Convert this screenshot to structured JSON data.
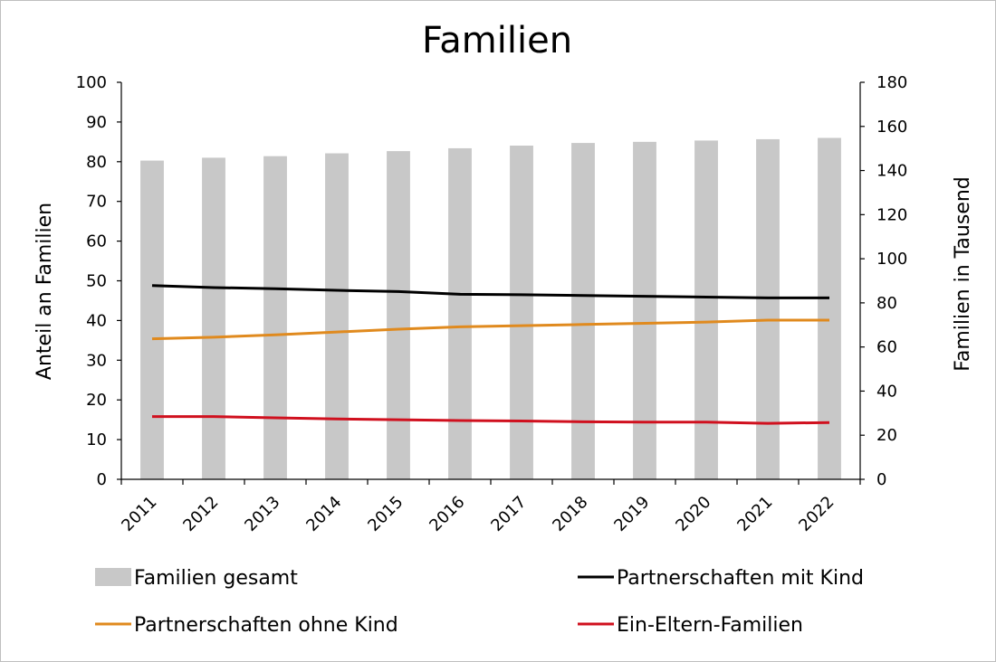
{
  "chart_data": {
    "type": "bar",
    "title": "Familien",
    "categories": [
      "2011",
      "2012",
      "2013",
      "2014",
      "2015",
      "2016",
      "2017",
      "2018",
      "2019",
      "2020",
      "2021",
      "2022"
    ],
    "y_left": {
      "label": "Anteil an Familien",
      "ylim": [
        0,
        100
      ],
      "ticks": [
        0,
        10,
        20,
        30,
        40,
        50,
        60,
        70,
        80,
        90,
        100
      ]
    },
    "y_right": {
      "label": "Familien in Tausend",
      "ylim": [
        0,
        180
      ],
      "ticks": [
        0,
        20,
        40,
        60,
        80,
        100,
        120,
        140,
        160,
        180
      ]
    },
    "grid": false,
    "legend_position": "bottom",
    "series": [
      {
        "name": "Familien gesamt",
        "type": "bar",
        "axis": "right",
        "color": "#c8c8c8",
        "values": [
          144.5,
          145.8,
          146.5,
          147.8,
          148.8,
          150.1,
          151.3,
          152.5,
          153.0,
          153.6,
          154.2,
          154.8
        ]
      },
      {
        "name": "Partnerschaften mit Kind",
        "type": "line",
        "axis": "left",
        "color": "#000000",
        "values": [
          48.8,
          48.3,
          48.0,
          47.6,
          47.3,
          46.6,
          46.5,
          46.3,
          46.1,
          45.9,
          45.7,
          45.7
        ]
      },
      {
        "name": "Partnerschaften ohne Kind",
        "type": "line",
        "axis": "left",
        "color": "#e08a1e",
        "values": [
          35.4,
          35.8,
          36.4,
          37.1,
          37.8,
          38.4,
          38.7,
          39.0,
          39.3,
          39.6,
          40.1,
          40.1
        ]
      },
      {
        "name": "Ein-Eltern-Familien",
        "type": "line",
        "axis": "left",
        "color": "#d0101e",
        "values": [
          15.8,
          15.8,
          15.5,
          15.2,
          15.0,
          14.8,
          14.7,
          14.5,
          14.4,
          14.4,
          14.1,
          14.3
        ]
      }
    ]
  }
}
